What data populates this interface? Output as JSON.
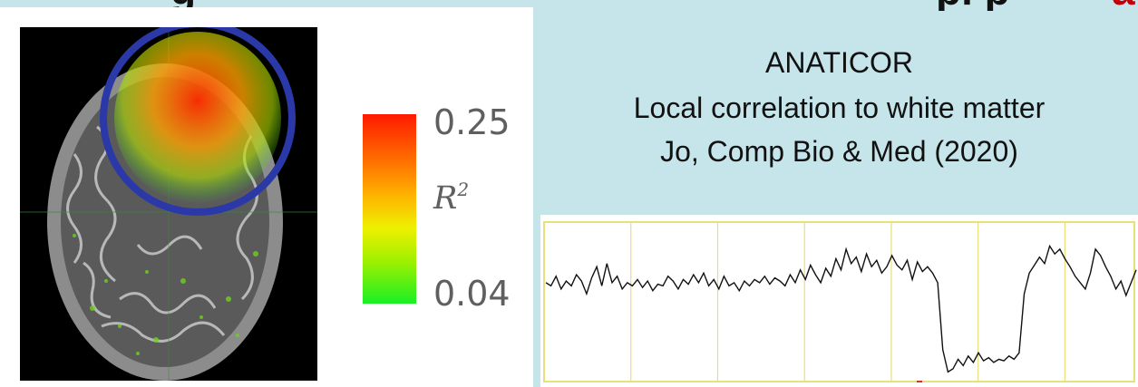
{
  "header": {
    "left_fragment": "g",
    "right_fragment": "pl  p",
    "red_fragment": "a"
  },
  "figure": {
    "colorbar": {
      "max_label": "0.25",
      "min_label": "0.04",
      "quantity": "R",
      "quantity_superscript": "2"
    },
    "highlight_color": "#2b39a8"
  },
  "citation": {
    "method": "ANATICOR",
    "description": "Local correlation to white matter",
    "reference": "Jo, Comp Bio & Med (2020)"
  },
  "timeseries": {
    "line_color": "#111111",
    "grid_color": "#e8e07a",
    "values": [
      0.62,
      0.6,
      0.66,
      0.58,
      0.63,
      0.6,
      0.67,
      0.63,
      0.55,
      0.65,
      0.72,
      0.6,
      0.74,
      0.62,
      0.66,
      0.58,
      0.62,
      0.6,
      0.64,
      0.59,
      0.63,
      0.57,
      0.61,
      0.6,
      0.66,
      0.63,
      0.58,
      0.64,
      0.61,
      0.67,
      0.62,
      0.68,
      0.6,
      0.64,
      0.58,
      0.66,
      0.6,
      0.62,
      0.57,
      0.63,
      0.6,
      0.64,
      0.62,
      0.66,
      0.61,
      0.65,
      0.63,
      0.6,
      0.67,
      0.62,
      0.7,
      0.64,
      0.73,
      0.67,
      0.62,
      0.71,
      0.66,
      0.77,
      0.7,
      0.83,
      0.74,
      0.78,
      0.69,
      0.8,
      0.72,
      0.76,
      0.68,
      0.72,
      0.79,
      0.73,
      0.7,
      0.76,
      0.64,
      0.75,
      0.69,
      0.72,
      0.68,
      0.62,
      0.2,
      0.06,
      0.08,
      0.14,
      0.1,
      0.16,
      0.12,
      0.18,
      0.13,
      0.15,
      0.12,
      0.14,
      0.13,
      0.16,
      0.14,
      0.18,
      0.55,
      0.68,
      0.73,
      0.78,
      0.74,
      0.85,
      0.8,
      0.83,
      0.77,
      0.72,
      0.66,
      0.62,
      0.58,
      0.68,
      0.83,
      0.79,
      0.72,
      0.66,
      0.58,
      0.63,
      0.54,
      0.62,
      0.7
    ]
  }
}
